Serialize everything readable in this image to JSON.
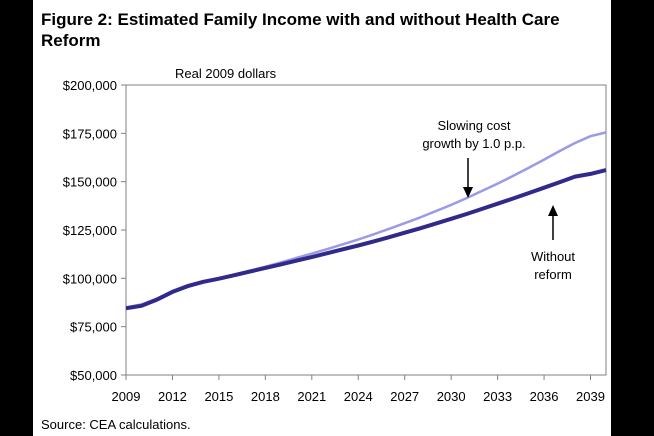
{
  "chart_data": {
    "type": "line",
    "title": "Figure 2: Estimated Family Income with and without Health Care Reform",
    "subtitle": "Real 2009 dollars",
    "source": "Source: CEA calculations.",
    "xlabel": "",
    "ylabel": "",
    "x": [
      2009,
      2010,
      2011,
      2012,
      2013,
      2014,
      2015,
      2016,
      2017,
      2018,
      2019,
      2020,
      2021,
      2022,
      2023,
      2024,
      2025,
      2026,
      2027,
      2028,
      2029,
      2030,
      2031,
      2032,
      2033,
      2034,
      2035,
      2036,
      2037,
      2038,
      2039,
      2040
    ],
    "xlim": [
      2009,
      2040
    ],
    "x_ticks": [
      2009,
      2012,
      2015,
      2018,
      2021,
      2024,
      2027,
      2030,
      2033,
      2036,
      2039
    ],
    "x_tick_labels": [
      "2009",
      "2012",
      "2015",
      "2018",
      "2021",
      "2024",
      "2027",
      "2030",
      "2033",
      "2036",
      "2039"
    ],
    "ylim": [
      50000,
      200000
    ],
    "y_ticks": [
      50000,
      75000,
      100000,
      125000,
      150000,
      175000,
      200000
    ],
    "y_tick_labels": [
      "$50,000",
      "$75,000",
      "$100,000",
      "$125,000",
      "$150,000",
      "$175,000",
      "$200,000"
    ],
    "grid": false,
    "series": [
      {
        "name": "Slowing cost growth by 1.0 p.p.",
        "color": "#9a9ae6",
        "values": [
          85000,
          86500,
          89500,
          93500,
          96500,
          98500,
          100000,
          102000,
          104000,
          106000,
          108200,
          110500,
          112800,
          115100,
          117600,
          120100,
          122800,
          125600,
          128500,
          131500,
          134700,
          138000,
          141500,
          145200,
          149000,
          153000,
          157100,
          161400,
          165800,
          170000,
          173500,
          175500
        ]
      },
      {
        "name": "Without reform",
        "color": "#302a8a",
        "values": [
          84500,
          85800,
          89000,
          93000,
          96000,
          98200,
          99800,
          101600,
          103500,
          105400,
          107200,
          109100,
          111000,
          113000,
          115000,
          117000,
          119100,
          121300,
          123600,
          125900,
          128300,
          130800,
          133300,
          135900,
          138600,
          141300,
          144100,
          146900,
          149700,
          152600,
          154000,
          156000
        ]
      }
    ],
    "annotations": [
      {
        "target": "series.0",
        "lines": [
          "Slowing cost",
          "growth by 1.0 p.p."
        ],
        "arrow": "down"
      },
      {
        "target": "series.1",
        "lines": [
          "Without",
          "reform"
        ],
        "arrow": "up"
      }
    ]
  }
}
